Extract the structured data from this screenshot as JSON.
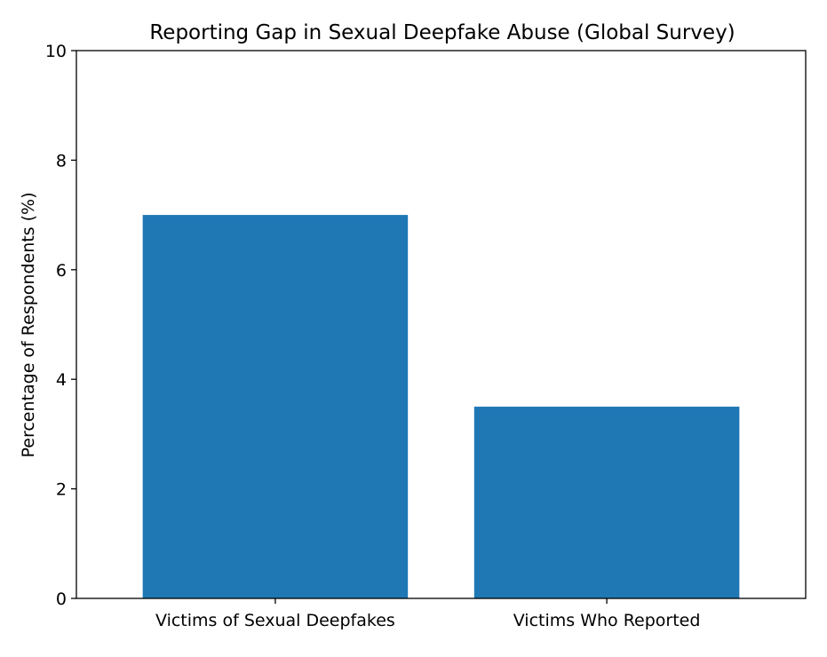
{
  "chart_data": {
    "type": "bar",
    "title": "Reporting Gap in Sexual Deepfake Abuse (Global Survey)",
    "xlabel": "",
    "ylabel": "Percentage of Respondents (%)",
    "categories": [
      "Victims of Sexual Deepfakes",
      "Victims Who Reported"
    ],
    "values": [
      7.0,
      3.5
    ],
    "ylim": [
      0,
      10
    ],
    "yticks": [
      0,
      2,
      4,
      6,
      8,
      10
    ],
    "grid": false,
    "bar_color": "#1f77b4"
  }
}
